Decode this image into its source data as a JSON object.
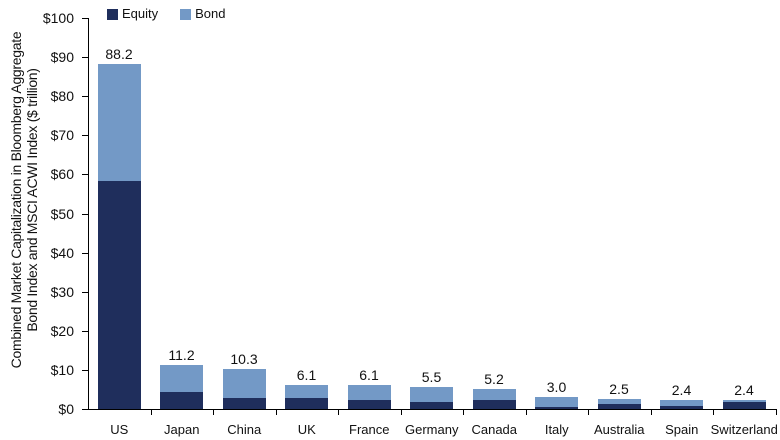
{
  "chart_data": {
    "type": "bar",
    "stacked": true,
    "title": "",
    "xlabel": "",
    "ylabel": "Combined Market Capitalization in Bloomberg Aggregate Bond Index and MSCI ACWI Index ($ trillion)",
    "ylabel_lines": [
      "Combined Market Capitalization in Bloomberg Aggregate",
      "Bond Index and MSCI ACWI Index ($ trillion)"
    ],
    "ylim": [
      0,
      100
    ],
    "yticks": [
      "$0",
      "$10",
      "$20",
      "$30",
      "$40",
      "$50",
      "$60",
      "$70",
      "$80",
      "$90",
      "$100"
    ],
    "grid": false,
    "legend_position": "top-left",
    "categories": [
      "US",
      "Japan",
      "China",
      "UK",
      "France",
      "Germany",
      "Canada",
      "Italy",
      "Australia",
      "Spain",
      "Switzerland"
    ],
    "series": [
      {
        "name": "Equity",
        "color": "#1f2e5c",
        "values": [
          58.4,
          4.3,
          2.8,
          2.8,
          2.2,
          1.8,
          2.4,
          0.6,
          1.2,
          0.7,
          1.7
        ]
      },
      {
        "name": "Bond",
        "color": "#7399c6",
        "values": [
          29.8,
          6.9,
          7.5,
          3.3,
          3.9,
          3.7,
          2.8,
          2.4,
          1.3,
          1.7,
          0.7
        ]
      }
    ],
    "totals": [
      88.2,
      11.2,
      10.3,
      6.1,
      6.1,
      5.5,
      5.2,
      3.0,
      2.5,
      2.4,
      2.4
    ],
    "total_labels": [
      "88.2",
      "11.2",
      "10.3",
      "6.1",
      "6.1",
      "5.5",
      "5.2",
      "3.0",
      "2.5",
      "2.4",
      "2.4"
    ]
  },
  "legend": {
    "equity_label": "Equity",
    "bond_label": "Bond"
  },
  "colors": {
    "equity": "#1f2e5c",
    "bond": "#7399c6",
    "axis": "#000000"
  }
}
